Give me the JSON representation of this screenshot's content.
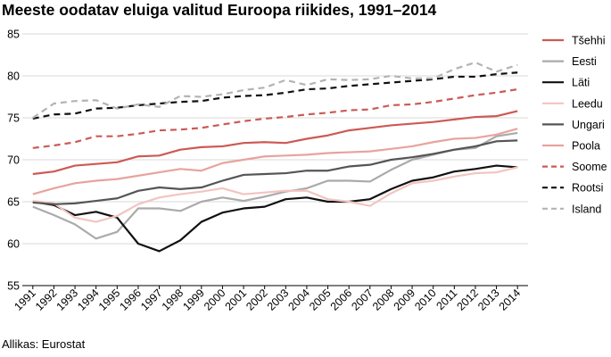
{
  "title": "Meeste oodatav eluiga valitud Euroopa riikides, 1991–2014",
  "source": "Allikas: Eurostat",
  "chart_data": {
    "type": "line",
    "title": "Meeste oodatav eluiga valitud Euroopa riikides, 1991–2014",
    "xlabel": "",
    "ylabel": "",
    "ylim": [
      55,
      85
    ],
    "yticks": [
      55,
      60,
      65,
      70,
      75,
      80,
      85
    ],
    "grid": "horizontal",
    "legend_position": "right",
    "x": [
      "1991",
      "1992",
      "1993",
      "1994",
      "1995",
      "1996",
      "1997",
      "1998",
      "1999",
      "2000",
      "2001",
      "2002",
      "2003",
      "2004",
      "2005",
      "2006",
      "2007",
      "2008",
      "2009",
      "2010",
      "2011",
      "2012",
      "2013",
      "2014"
    ],
    "series": [
      {
        "name": "Tšehhi",
        "color": "#cc5a55",
        "dash": false,
        "values": [
          68.3,
          68.6,
          69.3,
          69.5,
          69.7,
          70.4,
          70.5,
          71.2,
          71.5,
          71.6,
          72.0,
          72.1,
          72.0,
          72.5,
          72.9,
          73.5,
          73.8,
          74.1,
          74.3,
          74.5,
          74.8,
          75.1,
          75.2,
          75.8
        ]
      },
      {
        "name": "Eesti",
        "color": "#aaaaaa",
        "dash": false,
        "values": [
          64.4,
          63.4,
          62.3,
          60.6,
          61.4,
          64.2,
          64.2,
          63.9,
          65.0,
          65.5,
          65.1,
          65.6,
          66.2,
          66.6,
          67.5,
          67.5,
          67.4,
          68.8,
          70.0,
          70.6,
          71.2,
          71.4,
          72.8,
          73.2
        ]
      },
      {
        "name": "Läti",
        "color": "#111111",
        "dash": false,
        "values": [
          65.0,
          64.6,
          63.4,
          63.8,
          63.1,
          60.0,
          59.1,
          60.4,
          62.6,
          63.7,
          64.2,
          64.4,
          65.3,
          65.5,
          65.0,
          65.0,
          65.3,
          66.5,
          67.5,
          67.9,
          68.6,
          68.9,
          69.3,
          69.1
        ]
      },
      {
        "name": "Leedu",
        "color": "#f2c4c0",
        "dash": false,
        "values": [
          65.1,
          64.8,
          63.1,
          62.6,
          63.3,
          64.7,
          65.5,
          65.9,
          66.2,
          66.6,
          65.9,
          66.1,
          66.3,
          66.3,
          65.3,
          65.0,
          64.5,
          66.0,
          67.2,
          67.5,
          68.0,
          68.4,
          68.5,
          69.1
        ]
      },
      {
        "name": "Ungari",
        "color": "#555555",
        "dash": false,
        "values": [
          64.9,
          64.7,
          64.8,
          65.1,
          65.4,
          66.3,
          66.7,
          66.5,
          66.7,
          67.5,
          68.2,
          68.3,
          68.4,
          68.7,
          68.7,
          69.2,
          69.4,
          70.0,
          70.3,
          70.7,
          71.2,
          71.6,
          72.2,
          72.3
        ]
      },
      {
        "name": "Poola",
        "color": "#e8a39e",
        "dash": false,
        "values": [
          65.9,
          66.6,
          67.2,
          67.5,
          67.7,
          68.1,
          68.5,
          68.9,
          68.7,
          69.6,
          70.0,
          70.4,
          70.5,
          70.6,
          70.8,
          70.9,
          71.0,
          71.3,
          71.6,
          72.1,
          72.5,
          72.6,
          73.0,
          73.7
        ]
      },
      {
        "name": "Soome",
        "color": "#cc5a55",
        "dash": true,
        "values": [
          71.4,
          71.7,
          72.1,
          72.8,
          72.8,
          73.1,
          73.5,
          73.6,
          73.8,
          74.2,
          74.6,
          74.9,
          75.1,
          75.4,
          75.6,
          75.9,
          76.0,
          76.5,
          76.6,
          76.9,
          77.3,
          77.7,
          78.0,
          78.4
        ]
      },
      {
        "name": "Rootsi",
        "color": "#111111",
        "dash": true,
        "values": [
          74.9,
          75.4,
          75.5,
          76.1,
          76.2,
          76.5,
          76.7,
          76.9,
          77.0,
          77.4,
          77.6,
          77.7,
          78.0,
          78.4,
          78.5,
          78.8,
          79.0,
          79.2,
          79.4,
          79.6,
          79.9,
          79.9,
          80.2,
          80.4
        ]
      },
      {
        "name": "Island",
        "color": "#b3b3b3",
        "dash": true,
        "values": [
          75.0,
          76.7,
          77.0,
          77.1,
          76.1,
          76.6,
          76.3,
          77.6,
          77.5,
          77.8,
          78.3,
          78.6,
          79.5,
          78.9,
          79.6,
          79.5,
          79.6,
          80.0,
          79.7,
          79.7,
          80.8,
          81.6,
          80.5,
          81.3
        ]
      }
    ]
  }
}
